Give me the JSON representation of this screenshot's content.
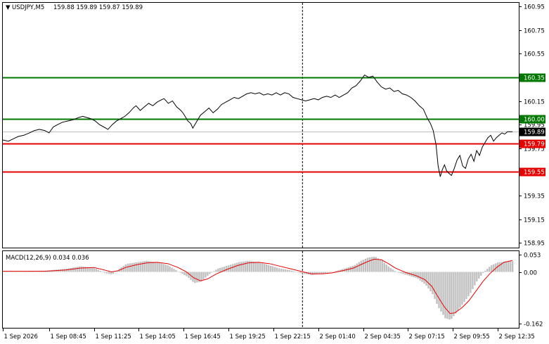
{
  "header": {
    "symbol_tf": "USDJPY,M5",
    "ohlc": "159.88 159.89 159.87 159.89"
  },
  "indicator": {
    "label": "MACD(12,26,9) 0.034 0.036"
  },
  "colors": {
    "price_line": "#000000",
    "green_level": "#007700",
    "red_level": "#e60000",
    "histogram": "#c0c0c0",
    "signal_line": "#e60000",
    "current_label_bg": "#000000",
    "separator": "#000000"
  },
  "chart_data": [
    {
      "type": "line",
      "name": "price",
      "ylim": [
        158.91,
        160.98
      ],
      "y_ticks": [
        "160.95",
        "160.75",
        "160.55",
        "160.35",
        "160.15",
        "159.95",
        "159.75",
        "159.55",
        "159.35",
        "159.15",
        "158.95"
      ],
      "y_tick_values": [
        160.95,
        160.75,
        160.55,
        160.35,
        160.15,
        159.95,
        159.75,
        159.55,
        159.35,
        159.15,
        158.95
      ],
      "x_ticks": [
        "1 Sep 2026",
        "1 Sep 08:45",
        "1 Sep 11:25",
        "1 Sep 14:05",
        "1 Sep 16:45",
        "1 Sep 19:25",
        "1 Sep 22:15",
        "2 Sep 01:40",
        "2 Sep 04:35",
        "2 Sep 07:15",
        "2 Sep 09:55",
        "2 Sep 12:35"
      ],
      "x_range": [
        0,
        727
      ],
      "x_tick_positions": [
        0,
        66,
        130,
        194,
        258,
        322,
        386,
        450,
        514,
        578,
        642,
        706
      ],
      "vertical_marker_x": 427,
      "levels": [
        {
          "value": 160.35,
          "label": "160.35",
          "color": "green"
        },
        {
          "value": 160.0,
          "label": "160.00",
          "color": "green"
        },
        {
          "value": 159.79,
          "label": "159.79",
          "color": "red"
        },
        {
          "value": 159.55,
          "label": "159.55",
          "color": "red"
        }
      ],
      "current": {
        "value": 159.89,
        "label": "159.89"
      },
      "points": [
        [
          0,
          159.82
        ],
        [
          8,
          159.81
        ],
        [
          15,
          159.83
        ],
        [
          22,
          159.85
        ],
        [
          30,
          159.86
        ],
        [
          38,
          159.88
        ],
        [
          45,
          159.9
        ],
        [
          52,
          159.91
        ],
        [
          60,
          159.9
        ],
        [
          66,
          159.88
        ],
        [
          72,
          159.93
        ],
        [
          78,
          159.95
        ],
        [
          85,
          159.97
        ],
        [
          92,
          159.98
        ],
        [
          100,
          159.99
        ],
        [
          108,
          160.01
        ],
        [
          114,
          160.02
        ],
        [
          120,
          160.01
        ],
        [
          126,
          160.0
        ],
        [
          132,
          159.98
        ],
        [
          138,
          159.95
        ],
        [
          144,
          159.93
        ],
        [
          150,
          159.91
        ],
        [
          156,
          159.95
        ],
        [
          162,
          159.98
        ],
        [
          168,
          160.0
        ],
        [
          174,
          160.02
        ],
        [
          180,
          160.05
        ],
        [
          186,
          160.09
        ],
        [
          190,
          160.11
        ],
        [
          196,
          160.07
        ],
        [
          202,
          160.1
        ],
        [
          208,
          160.13
        ],
        [
          214,
          160.11
        ],
        [
          220,
          160.14
        ],
        [
          226,
          160.16
        ],
        [
          230,
          160.17
        ],
        [
          236,
          160.13
        ],
        [
          242,
          160.15
        ],
        [
          248,
          160.1
        ],
        [
          254,
          160.07
        ],
        [
          258,
          160.04
        ],
        [
          264,
          159.98
        ],
        [
          268,
          159.96
        ],
        [
          271,
          159.92
        ],
        [
          276,
          159.97
        ],
        [
          282,
          160.03
        ],
        [
          288,
          160.06
        ],
        [
          294,
          160.09
        ],
        [
          300,
          160.05
        ],
        [
          306,
          160.08
        ],
        [
          312,
          160.12
        ],
        [
          318,
          160.14
        ],
        [
          324,
          160.16
        ],
        [
          330,
          160.18
        ],
        [
          336,
          160.17
        ],
        [
          342,
          160.19
        ],
        [
          348,
          160.21
        ],
        [
          354,
          160.22
        ],
        [
          360,
          160.21
        ],
        [
          366,
          160.22
        ],
        [
          372,
          160.2
        ],
        [
          378,
          160.21
        ],
        [
          384,
          160.2
        ],
        [
          390,
          160.22
        ],
        [
          396,
          160.2
        ],
        [
          402,
          160.22
        ],
        [
          408,
          160.21
        ],
        [
          414,
          160.18
        ],
        [
          420,
          160.17
        ],
        [
          426,
          160.16
        ],
        [
          432,
          160.15
        ],
        [
          438,
          160.16
        ],
        [
          444,
          160.17
        ],
        [
          450,
          160.16
        ],
        [
          456,
          160.18
        ],
        [
          462,
          160.19
        ],
        [
          468,
          160.18
        ],
        [
          474,
          160.2
        ],
        [
          480,
          160.18
        ],
        [
          486,
          160.2
        ],
        [
          492,
          160.22
        ],
        [
          498,
          160.26
        ],
        [
          504,
          160.28
        ],
        [
          510,
          160.32
        ],
        [
          516,
          160.37
        ],
        [
          522,
          160.35
        ],
        [
          528,
          160.36
        ],
        [
          534,
          160.31
        ],
        [
          540,
          160.27
        ],
        [
          546,
          160.25
        ],
        [
          552,
          160.26
        ],
        [
          558,
          160.23
        ],
        [
          564,
          160.24
        ],
        [
          570,
          160.21
        ],
        [
          576,
          160.2
        ],
        [
          582,
          160.18
        ],
        [
          588,
          160.15
        ],
        [
          594,
          160.11
        ],
        [
          600,
          160.08
        ],
        [
          606,
          160.0
        ],
        [
          610,
          159.96
        ],
        [
          614,
          159.9
        ],
        [
          618,
          159.78
        ],
        [
          621,
          159.6
        ],
        [
          624,
          159.51
        ],
        [
          627,
          159.57
        ],
        [
          630,
          159.61
        ],
        [
          633,
          159.56
        ],
        [
          636,
          159.54
        ],
        [
          640,
          159.52
        ],
        [
          644,
          159.58
        ],
        [
          648,
          159.65
        ],
        [
          652,
          159.69
        ],
        [
          656,
          159.6
        ],
        [
          660,
          159.58
        ],
        [
          664,
          159.66
        ],
        [
          668,
          159.7
        ],
        [
          672,
          159.64
        ],
        [
          676,
          159.73
        ],
        [
          680,
          159.69
        ],
        [
          684,
          159.76
        ],
        [
          688,
          159.8
        ],
        [
          692,
          159.84
        ],
        [
          696,
          159.86
        ],
        [
          700,
          159.81
        ],
        [
          704,
          159.84
        ],
        [
          708,
          159.86
        ],
        [
          712,
          159.88
        ],
        [
          716,
          159.87
        ],
        [
          720,
          159.89
        ],
        [
          727,
          159.89
        ]
      ]
    },
    {
      "type": "bar",
      "name": "MACD(12,26,9)",
      "ylim": [
        -0.175,
        0.065
      ],
      "y_ticks": [
        "0.053",
        "0.00",
        "-0.162"
      ],
      "y_tick_values": [
        0.053,
        0.0,
        -0.162
      ],
      "histogram_points": [
        [
          0,
          0.002
        ],
        [
          30,
          0.003
        ],
        [
          60,
          0.004
        ],
        [
          90,
          0.01
        ],
        [
          110,
          0.018
        ],
        [
          130,
          0.012
        ],
        [
          145,
          -0.004
        ],
        [
          155,
          -0.008
        ],
        [
          165,
          0.01
        ],
        [
          175,
          0.025
        ],
        [
          190,
          0.03
        ],
        [
          205,
          0.035
        ],
        [
          220,
          0.03
        ],
        [
          235,
          0.02
        ],
        [
          250,
          0.0
        ],
        [
          262,
          -0.015
        ],
        [
          272,
          -0.035
        ],
        [
          282,
          -0.03
        ],
        [
          292,
          -0.01
        ],
        [
          305,
          0.01
        ],
        [
          320,
          0.02
        ],
        [
          335,
          0.03
        ],
        [
          350,
          0.035
        ],
        [
          365,
          0.03
        ],
        [
          380,
          0.02
        ],
        [
          395,
          0.01
        ],
        [
          410,
          0.005
        ],
        [
          425,
          -0.005
        ],
        [
          440,
          -0.01
        ],
        [
          455,
          -0.005
        ],
        [
          470,
          0.0
        ],
        [
          485,
          0.01
        ],
        [
          500,
          0.02
        ],
        [
          510,
          0.035
        ],
        [
          520,
          0.045
        ],
        [
          530,
          0.048
        ],
        [
          540,
          0.035
        ],
        [
          550,
          0.015
        ],
        [
          560,
          0.0
        ],
        [
          575,
          -0.01
        ],
        [
          590,
          -0.02
        ],
        [
          602,
          -0.04
        ],
        [
          612,
          -0.07
        ],
        [
          620,
          -0.11
        ],
        [
          630,
          -0.145
        ],
        [
          638,
          -0.15
        ],
        [
          645,
          -0.13
        ],
        [
          655,
          -0.1
        ],
        [
          665,
          -0.07
        ],
        [
          675,
          -0.03
        ],
        [
          685,
          0.0
        ],
        [
          695,
          0.02
        ],
        [
          705,
          0.03
        ],
        [
          715,
          0.032
        ],
        [
          727,
          0.034
        ]
      ],
      "signal_points": [
        [
          0,
          0.002
        ],
        [
          30,
          0.002
        ],
        [
          60,
          0.002
        ],
        [
          90,
          0.006
        ],
        [
          110,
          0.012
        ],
        [
          130,
          0.014
        ],
        [
          145,
          0.006
        ],
        [
          155,
          0.0
        ],
        [
          165,
          0.004
        ],
        [
          175,
          0.014
        ],
        [
          190,
          0.022
        ],
        [
          205,
          0.028
        ],
        [
          220,
          0.03
        ],
        [
          235,
          0.026
        ],
        [
          250,
          0.014
        ],
        [
          262,
          0.0
        ],
        [
          272,
          -0.018
        ],
        [
          282,
          -0.028
        ],
        [
          292,
          -0.022
        ],
        [
          305,
          -0.006
        ],
        [
          320,
          0.008
        ],
        [
          335,
          0.02
        ],
        [
          350,
          0.028
        ],
        [
          365,
          0.03
        ],
        [
          380,
          0.026
        ],
        [
          395,
          0.018
        ],
        [
          410,
          0.01
        ],
        [
          425,
          0.002
        ],
        [
          440,
          -0.006
        ],
        [
          455,
          -0.006
        ],
        [
          470,
          -0.003
        ],
        [
          485,
          0.004
        ],
        [
          500,
          0.012
        ],
        [
          510,
          0.022
        ],
        [
          520,
          0.032
        ],
        [
          530,
          0.04
        ],
        [
          540,
          0.038
        ],
        [
          550,
          0.026
        ],
        [
          560,
          0.012
        ],
        [
          575,
          -0.002
        ],
        [
          590,
          -0.012
        ],
        [
          602,
          -0.024
        ],
        [
          612,
          -0.045
        ],
        [
          620,
          -0.075
        ],
        [
          630,
          -0.11
        ],
        [
          638,
          -0.13
        ],
        [
          645,
          -0.128
        ],
        [
          655,
          -0.112
        ],
        [
          665,
          -0.09
        ],
        [
          675,
          -0.06
        ],
        [
          685,
          -0.03
        ],
        [
          695,
          -0.005
        ],
        [
          705,
          0.015
        ],
        [
          715,
          0.03
        ],
        [
          727,
          0.036
        ]
      ]
    }
  ]
}
